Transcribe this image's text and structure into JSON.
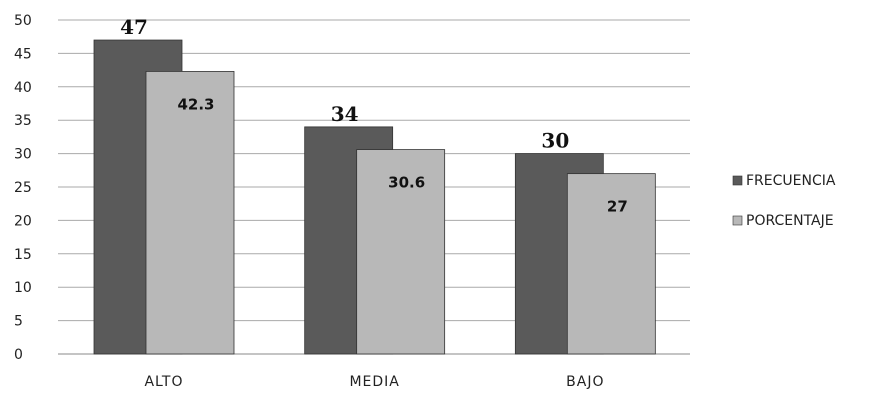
{
  "chart_data": {
    "type": "bar",
    "categories": [
      "ALTO",
      "MEDIA",
      "BAJO"
    ],
    "series": [
      {
        "name": "FRECUENCIA",
        "values": [
          47,
          34,
          30
        ],
        "labels": [
          "47",
          "34",
          "30"
        ],
        "color": "#5a5a5a"
      },
      {
        "name": "PORCENTAJE",
        "values": [
          42.3,
          30.6,
          27
        ],
        "labels": [
          "42.3",
          "30.6",
          "27"
        ],
        "color": "#b8b8b8"
      }
    ],
    "yticks": [
      "0",
      "5",
      "10",
      "15",
      "20",
      "25",
      "30",
      "35",
      "40",
      "45",
      "50"
    ],
    "ylim": [
      0,
      50
    ],
    "grid": true,
    "legend_position": "right"
  }
}
